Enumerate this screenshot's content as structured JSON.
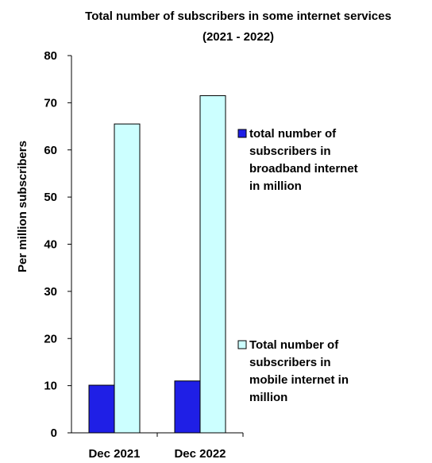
{
  "chart_data": {
    "type": "bar",
    "title": "Total number of subscribers in some internet services",
    "subtitle": "(2021 - 2022)",
    "ylabel": "Per million subscribers",
    "xlabel": "",
    "ylim": [
      0,
      80
    ],
    "yticks": [
      0,
      10,
      20,
      30,
      40,
      50,
      60,
      70,
      80
    ],
    "categories": [
      "Dec 2021",
      "Dec 2022"
    ],
    "grid": false,
    "legend_position": "right",
    "series": [
      {
        "name": "total number of subscribers in broadband internet in million",
        "legend_lines": [
          "total number of",
          "subscribers in",
          "broadband internet",
          "in million"
        ],
        "color": "#1f1fe6",
        "values": [
          10.1,
          11.0
        ]
      },
      {
        "name": "Total number of subscribers in mobile internet in million",
        "legend_lines": [
          "Total number of",
          "subscribers in",
          "mobile internet in",
          "million"
        ],
        "color": "#ccffff",
        "values": [
          65.5,
          71.5
        ]
      }
    ]
  }
}
